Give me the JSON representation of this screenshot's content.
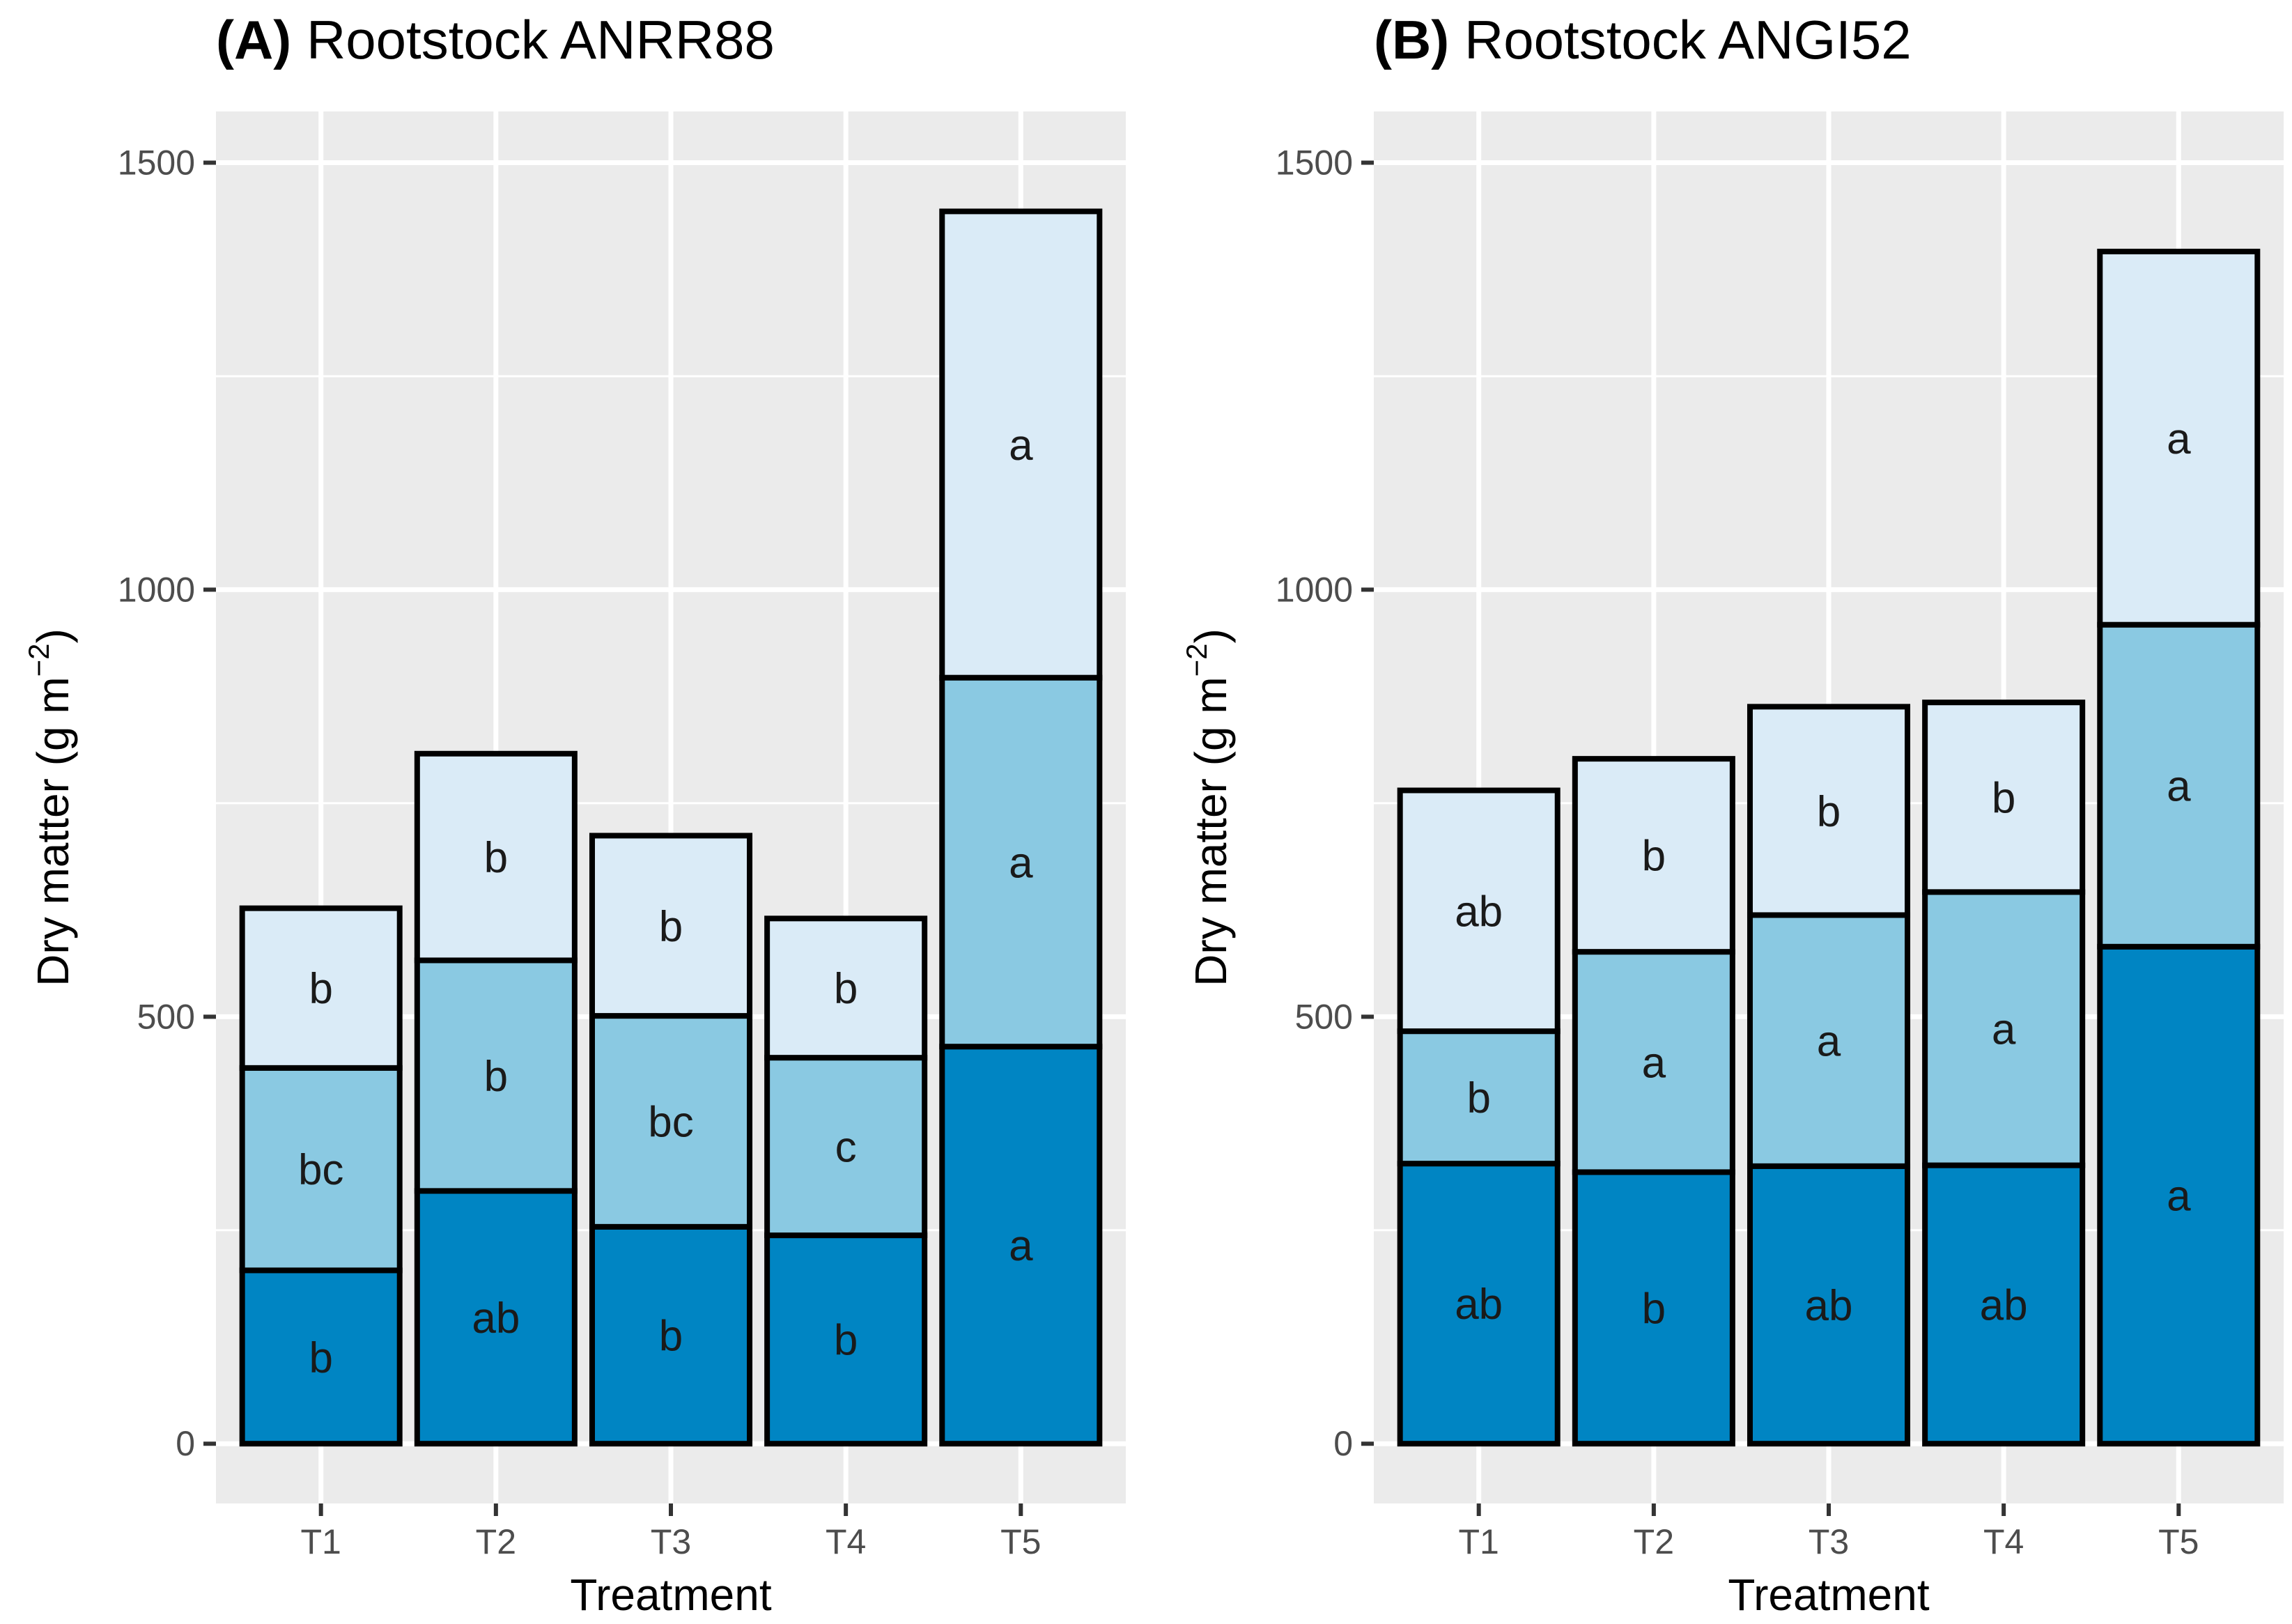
{
  "chart_data": [
    {
      "type": "bar",
      "stacked": true,
      "title_tag": "(A)",
      "title": "Rootstock ANRR88",
      "xlabel": "Treatment",
      "ylabel_main": "Dry matter (g m",
      "ylabel_sup": "−2",
      "ylabel_close": ")",
      "ylim": [
        -70,
        1560
      ],
      "yticks": [
        0,
        500,
        1000,
        1500
      ],
      "ytick_labels": [
        "0",
        "500",
        "1000",
        "1500"
      ],
      "grid": true,
      "categories": [
        "T1",
        "T2",
        "T3",
        "T4",
        "T5"
      ],
      "series": [
        {
          "name": "bottom",
          "color": "#0085C3",
          "values": [
            203,
            296,
            254,
            244,
            465
          ],
          "labels": [
            "b",
            "ab",
            "b",
            "b",
            "a"
          ]
        },
        {
          "name": "middle",
          "color": "#8AC9E2",
          "values": [
            237,
            270,
            247,
            208,
            432
          ],
          "labels": [
            "bc",
            "b",
            "bc",
            "c",
            "a"
          ]
        },
        {
          "name": "top",
          "color": "#DAEBF7",
          "values": [
            187,
            242,
            211,
            163,
            546
          ],
          "labels": [
            "b",
            "b",
            "b",
            "b",
            "a"
          ]
        }
      ]
    },
    {
      "type": "bar",
      "stacked": true,
      "title_tag": "(B)",
      "title": "Rootstock ANGI52",
      "xlabel": "Treatment",
      "ylabel_main": "Dry matter (g m",
      "ylabel_sup": "−2",
      "ylabel_close": ")",
      "ylim": [
        -70,
        1560
      ],
      "yticks": [
        0,
        500,
        1000,
        1500
      ],
      "ytick_labels": [
        "0",
        "500",
        "1000",
        "1500"
      ],
      "grid": true,
      "categories": [
        "T1",
        "T2",
        "T3",
        "T4",
        "T5"
      ],
      "series": [
        {
          "name": "bottom",
          "color": "#0085C3",
          "values": [
            328,
            318,
            325,
            326,
            582
          ],
          "labels": [
            "ab",
            "b",
            "ab",
            "ab",
            "a"
          ]
        },
        {
          "name": "middle",
          "color": "#8AC9E2",
          "values": [
            155,
            258,
            294,
            320,
            377
          ],
          "labels": [
            "b",
            "a",
            "a",
            "a",
            "a"
          ]
        },
        {
          "name": "top",
          "color": "#DAEBF7",
          "values": [
            282,
            226,
            244,
            222,
            437
          ],
          "labels": [
            "ab",
            "b",
            "b",
            "b",
            "a"
          ]
        }
      ]
    }
  ]
}
